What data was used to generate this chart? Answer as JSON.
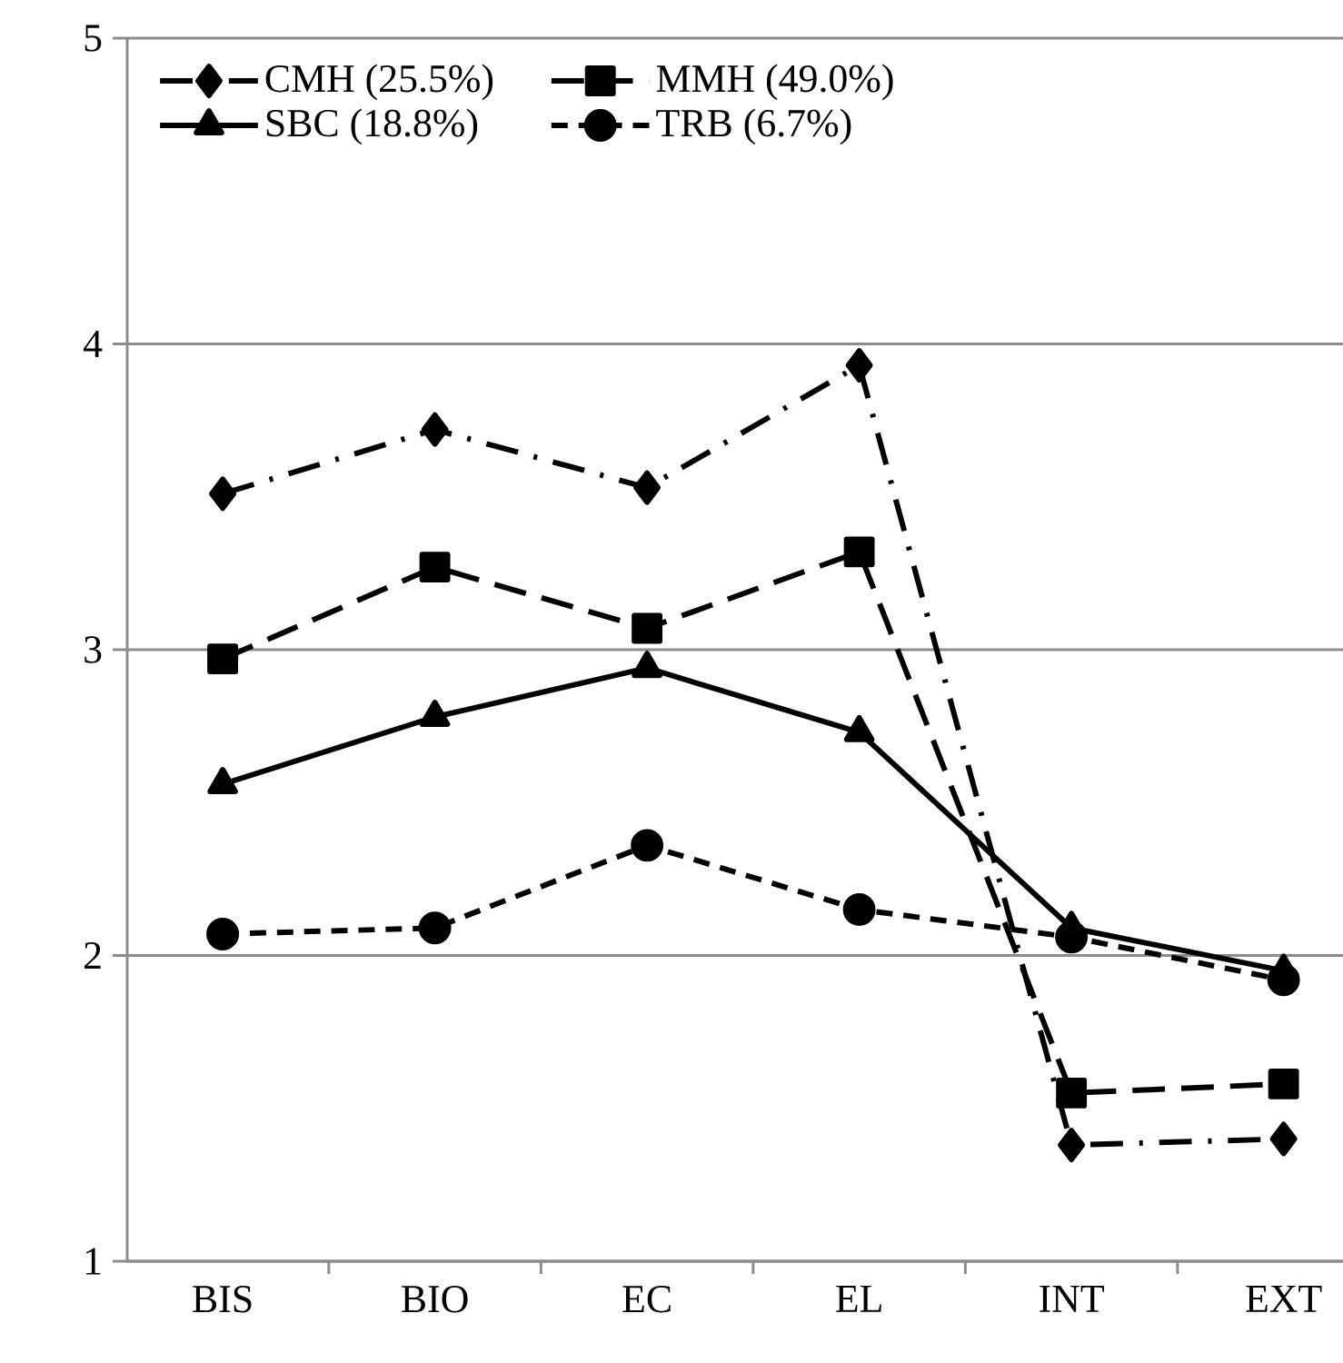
{
  "chart_data": {
    "type": "line",
    "categories": [
      "BIS",
      "BIO",
      "EC",
      "EL",
      "INT",
      "EXT"
    ],
    "ylim": [
      1,
      5
    ],
    "yticks": [
      1,
      2,
      3,
      4,
      5
    ],
    "grid": "y",
    "legend": "top left",
    "series": [
      {
        "name": "CMH (25.5%)",
        "color": "#000000",
        "marker": "diamond",
        "line_style": "dashdot",
        "values": [
          3.51,
          3.72,
          3.53,
          3.93,
          1.38,
          1.4
        ]
      },
      {
        "name": "MMH (49.0%)",
        "color": "#000000",
        "marker": "square",
        "line_style": "dashed",
        "values": [
          2.97,
          3.27,
          3.07,
          3.32,
          1.55,
          1.58
        ]
      },
      {
        "name": "SBC (18.8%)",
        "color": "#000000",
        "marker": "triangle",
        "line_style": "solid",
        "values": [
          2.56,
          2.78,
          2.94,
          2.73,
          2.09,
          1.95
        ]
      },
      {
        "name": "TRB (6.7%)",
        "color": "#000000",
        "marker": "circle",
        "line_style": "dashed",
        "values": [
          2.07,
          2.09,
          2.36,
          2.15,
          2.06,
          1.92
        ]
      }
    ]
  }
}
